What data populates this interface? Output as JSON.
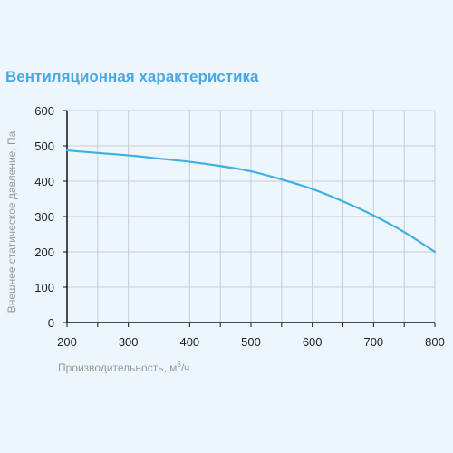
{
  "chart_data": {
    "type": "line",
    "title": "Вентиляционная характеристика",
    "xlabel": "Производительность, м³/ч",
    "ylabel": "Внешнее статическое давление, Па",
    "xlim": [
      200,
      800
    ],
    "ylim": [
      0,
      600
    ],
    "xticks": [
      200,
      300,
      400,
      500,
      600,
      700,
      800
    ],
    "yticks": [
      0,
      100,
      200,
      300,
      400,
      500,
      600
    ],
    "grid": true,
    "colors": {
      "line": "#3fb0e6",
      "grid": "#c9ccd1",
      "axis": "#111111"
    },
    "series": [
      {
        "x": [
          200,
          250,
          300,
          350,
          400,
          450,
          500,
          550,
          600,
          650,
          700,
          750,
          800
        ],
        "y": [
          487,
          480,
          473,
          464,
          455,
          443,
          428,
          405,
          378,
          343,
          303,
          256,
          200
        ]
      }
    ]
  }
}
